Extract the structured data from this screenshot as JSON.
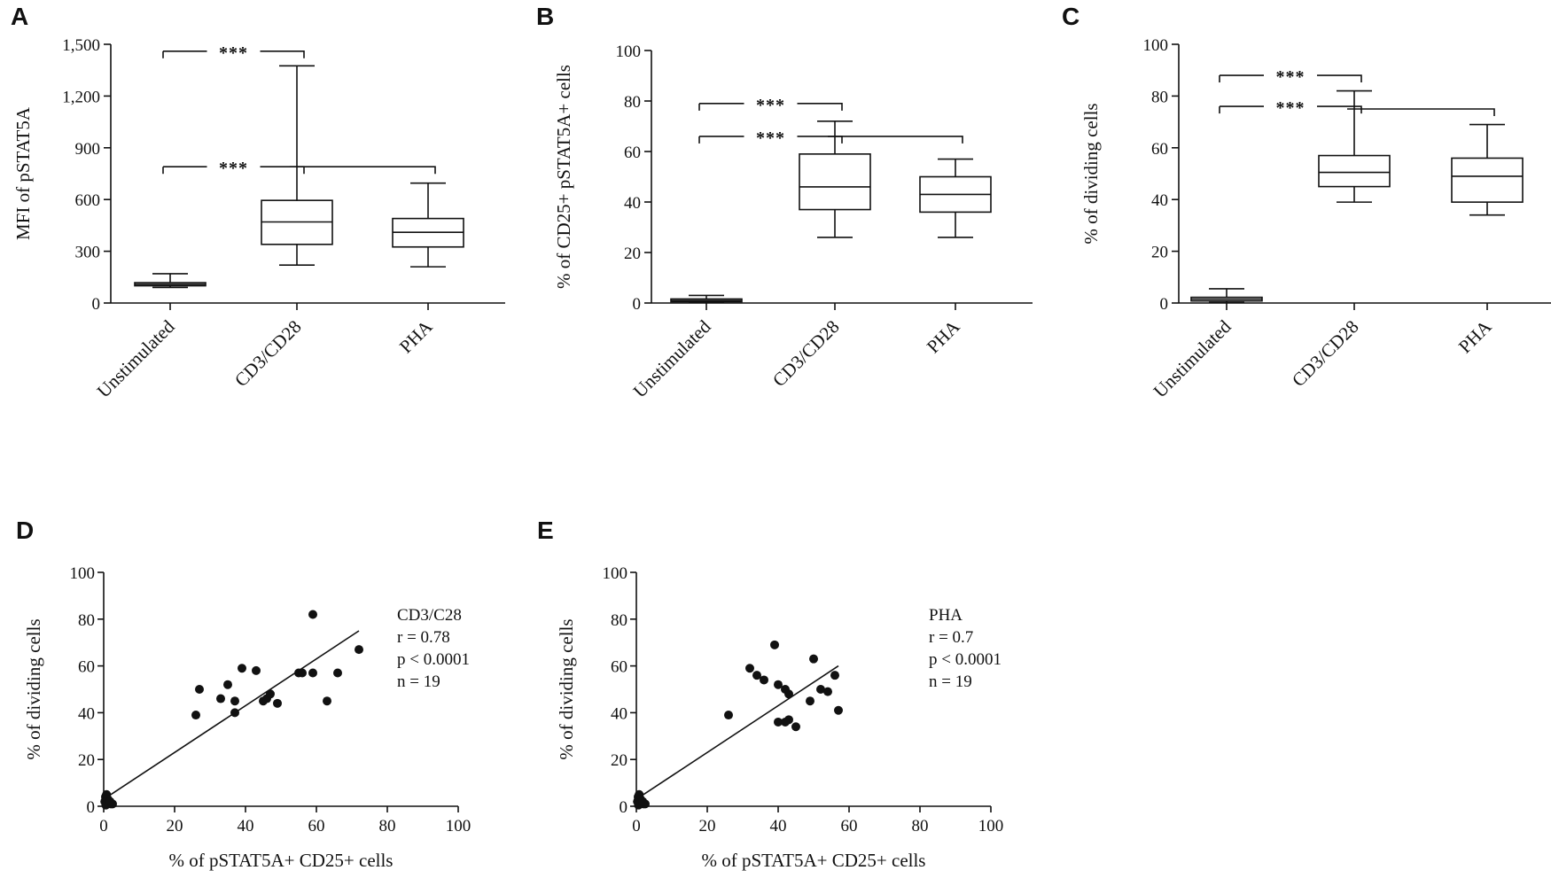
{
  "chart_data": [
    {
      "panel": "A",
      "type": "box",
      "ylabel": "MFI of pSTAT5A",
      "ylim": [
        0,
        1500
      ],
      "yticks": [
        0,
        300,
        600,
        900,
        1200,
        1500
      ],
      "ytick_labels": [
        "0",
        "300",
        "600",
        "900",
        "1,200",
        "1,500"
      ],
      "categories": [
        "Unstimulated",
        "CD3/CD28",
        "PHA"
      ],
      "boxes": [
        {
          "min": 90,
          "q1": 100,
          "median": 108,
          "q3": 118,
          "max": 170
        },
        {
          "min": 220,
          "q1": 340,
          "median": 470,
          "q3": 595,
          "max": 1375
        },
        {
          "min": 210,
          "q1": 325,
          "median": 410,
          "q3": 490,
          "max": 695
        }
      ],
      "brackets": [
        {
          "from": 0,
          "to": 1,
          "y": 1460,
          "label": "***"
        },
        {
          "from": 0,
          "to": 1,
          "y": 790,
          "label": "***"
        },
        {
          "from": 1,
          "to": 2,
          "y": 790,
          "label": ""
        }
      ]
    },
    {
      "panel": "B",
      "type": "box",
      "ylabel": "% of CD25+ pSTAT5A+ cells",
      "ylim": [
        0,
        100
      ],
      "yticks": [
        0,
        20,
        40,
        60,
        80,
        100
      ],
      "ytick_labels": [
        "0",
        "20",
        "40",
        "60",
        "80",
        "100"
      ],
      "categories": [
        "Unstimulated",
        "CD3/CD28",
        "PHA"
      ],
      "boxes": [
        {
          "min": 0.2,
          "q1": 0.5,
          "median": 1.0,
          "q3": 1.6,
          "max": 3.0
        },
        {
          "min": 26,
          "q1": 37,
          "median": 46,
          "q3": 59,
          "max": 72
        },
        {
          "min": 26,
          "q1": 36,
          "median": 43,
          "q3": 50,
          "max": 57
        }
      ],
      "brackets": [
        {
          "from": 0,
          "to": 1,
          "y": 79,
          "label": "***"
        },
        {
          "from": 0,
          "to": 1,
          "y": 66,
          "label": "***"
        },
        {
          "from": 1,
          "to": 2,
          "y": 66,
          "label": ""
        }
      ]
    },
    {
      "panel": "C",
      "type": "box",
      "ylabel": "% of dividing cells",
      "ylim": [
        0,
        100
      ],
      "yticks": [
        0,
        20,
        40,
        60,
        80,
        100
      ],
      "ytick_labels": [
        "0",
        "20",
        "40",
        "60",
        "80",
        "100"
      ],
      "categories": [
        "Unstimulated",
        "CD3/CD28",
        "PHA"
      ],
      "boxes": [
        {
          "min": 0.2,
          "q1": 0.8,
          "median": 1.5,
          "q3": 2.2,
          "max": 5.5
        },
        {
          "min": 39,
          "q1": 45,
          "median": 50.5,
          "q3": 57,
          "max": 82
        },
        {
          "min": 34,
          "q1": 39,
          "median": 49,
          "q3": 56,
          "max": 69
        }
      ],
      "brackets": [
        {
          "from": 0,
          "to": 1,
          "y": 88,
          "label": "***"
        },
        {
          "from": 0,
          "to": 1,
          "y": 76,
          "label": "***"
        },
        {
          "from": 1,
          "to": 2,
          "y": 75,
          "label": ""
        }
      ]
    },
    {
      "panel": "D",
      "type": "scatter",
      "xlabel": "% of pSTAT5A+ CD25+ cells",
      "ylabel": "% of dividing cells",
      "xlim": [
        0,
        100
      ],
      "ylim": [
        0,
        100
      ],
      "xticks": [
        0,
        20,
        40,
        60,
        80,
        100
      ],
      "yticks": [
        0,
        20,
        40,
        60,
        80,
        100
      ],
      "stats": [
        "CD3/C28",
        "r = 0.78",
        "p < 0.0001",
        "n = 19"
      ],
      "regression": {
        "x1": 0,
        "y1": 3,
        "x2": 72,
        "y2": 75
      },
      "x": [
        0.3,
        0.5,
        0.8,
        1.0,
        1.2,
        1.5,
        2.0,
        2.5,
        0.6,
        1.8,
        26,
        27,
        33,
        35,
        37,
        37,
        39,
        43,
        45,
        46,
        47,
        49,
        55,
        56,
        59,
        59,
        63,
        66,
        72
      ],
      "y": [
        2,
        4,
        5,
        1,
        3,
        2,
        1,
        1,
        0.5,
        2,
        39,
        50,
        46,
        52,
        45,
        40,
        59,
        58,
        45,
        46,
        48,
        44,
        57,
        57,
        57,
        82,
        45,
        57,
        67
      ]
    },
    {
      "panel": "E",
      "type": "scatter",
      "xlabel": "% of pSTAT5A+ CD25+ cells",
      "ylabel": "% of dividing cells",
      "xlim": [
        0,
        100
      ],
      "ylim": [
        0,
        100
      ],
      "xticks": [
        0,
        20,
        40,
        60,
        80,
        100
      ],
      "yticks": [
        0,
        20,
        40,
        60,
        80,
        100
      ],
      "stats": [
        "PHA",
        "r = 0.7",
        "p < 0.0001",
        "n = 19"
      ],
      "regression": {
        "x1": 0,
        "y1": 3,
        "x2": 57,
        "y2": 60
      },
      "x": [
        0.3,
        0.5,
        0.8,
        1.0,
        1.2,
        1.5,
        2.0,
        2.5,
        0.6,
        1.8,
        26,
        32,
        34,
        36,
        39,
        40,
        40,
        42,
        43,
        43,
        45,
        49,
        50,
        52,
        54,
        56,
        57,
        42
      ],
      "y": [
        2,
        4,
        5,
        1,
        3,
        2,
        1,
        1,
        0.5,
        2,
        39,
        59,
        56,
        54,
        69,
        52,
        36,
        50,
        37,
        48,
        34,
        45,
        63,
        50,
        49,
        56,
        41,
        36
      ]
    }
  ]
}
